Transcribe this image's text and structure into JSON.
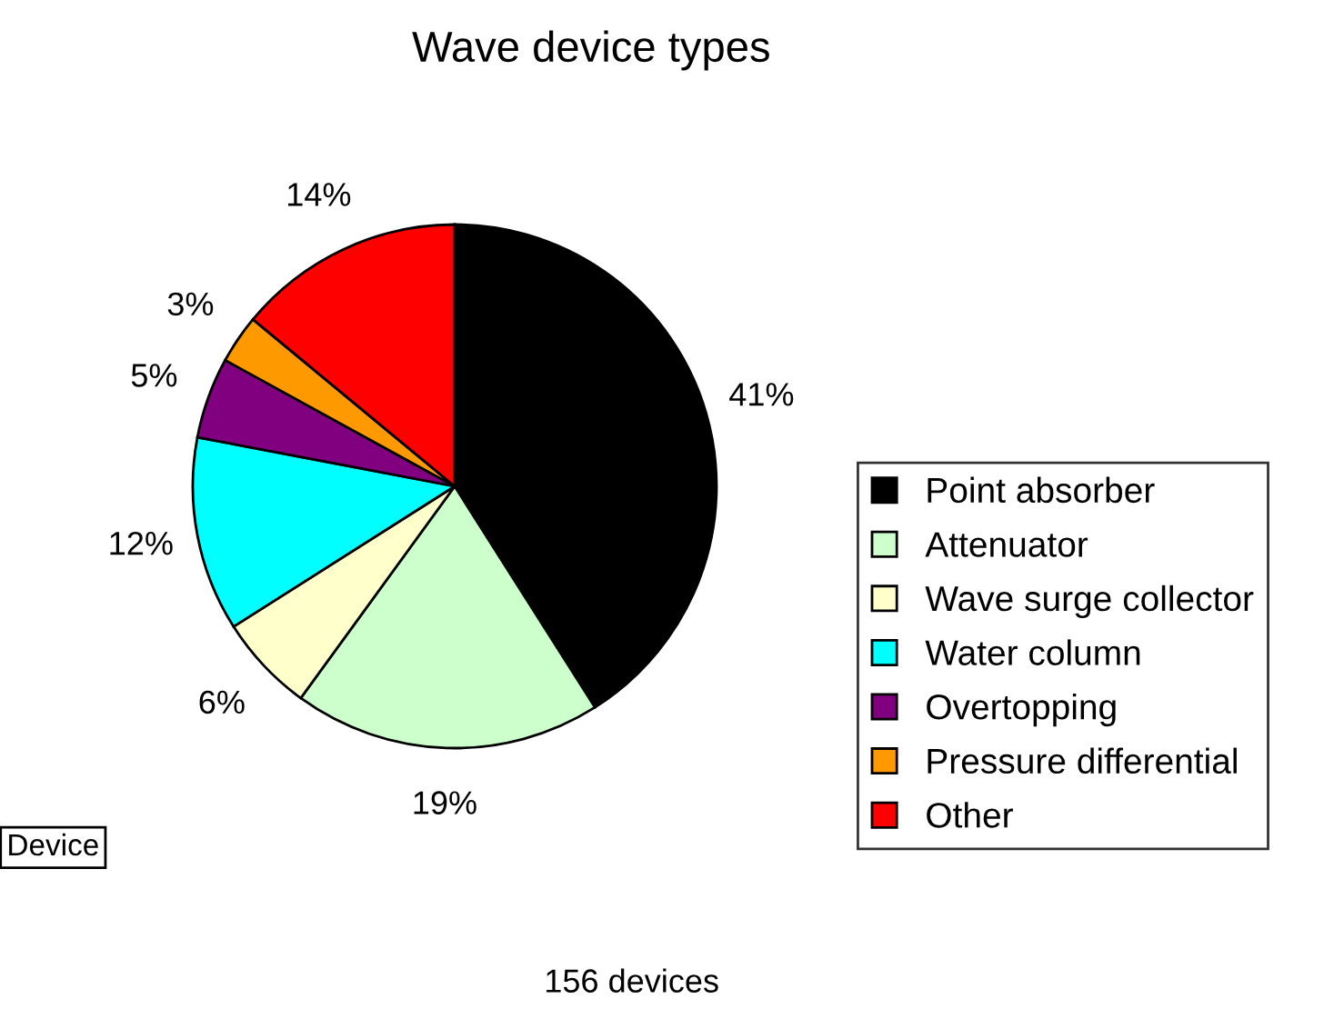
{
  "chart_data": {
    "type": "pie",
    "title": "Wave device types",
    "categories": [
      "Point absorber",
      "Attenuator",
      "Wave surge collector",
      "Water column",
      "Overtopping",
      "Pressure differential",
      "Other"
    ],
    "values": [
      41,
      19,
      6,
      12,
      5,
      3,
      14
    ],
    "colors": [
      "#000000",
      "#ccffcc",
      "#ffffcc",
      "#00ffff",
      "#800080",
      "#ff9900",
      "#ff0000"
    ],
    "value_labels": [
      "41%",
      "19%",
      "6%",
      "12%",
      "5%",
      "3%",
      "14%"
    ],
    "legend": "right",
    "annotations": [
      "156 devices",
      "Device"
    ]
  }
}
